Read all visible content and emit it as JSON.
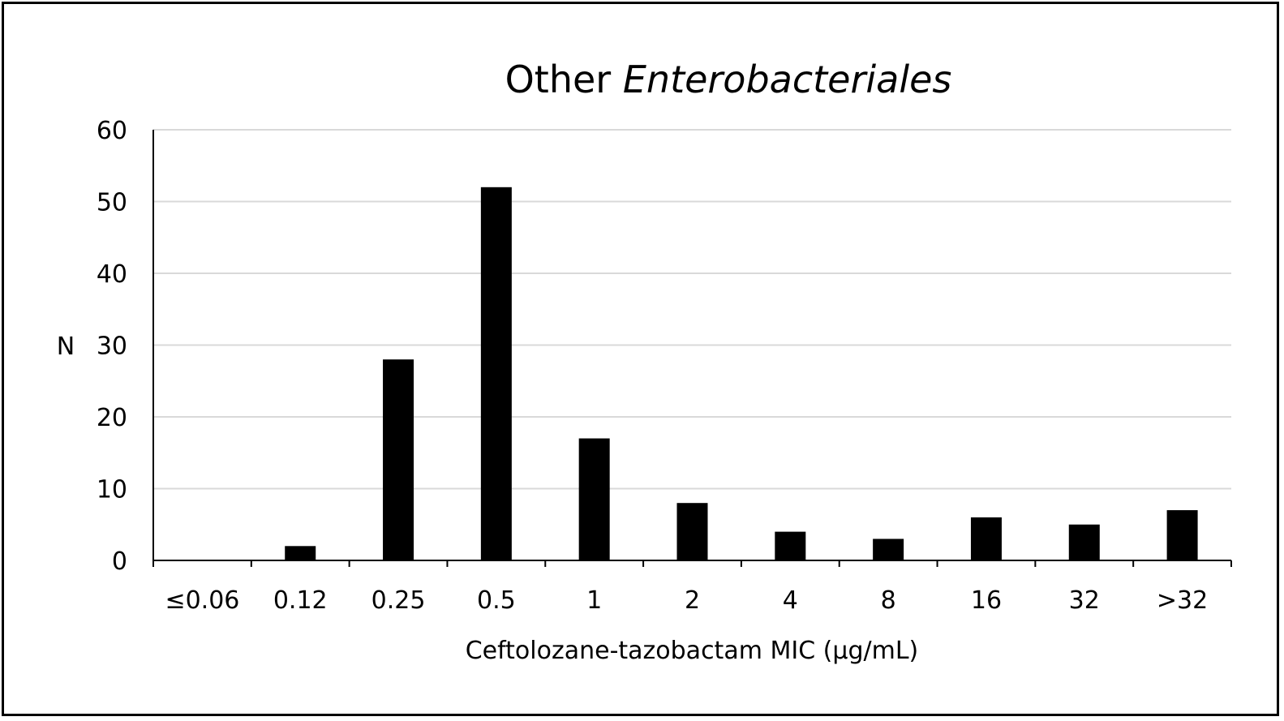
{
  "chart_data": {
    "type": "bar",
    "title": "Other",
    "title_italic": "Enterobacteriales",
    "xlabel": "Ceftolozane-tazobactam MIC (µg/mL)",
    "ylabel": "N",
    "categories": [
      "≤0.06",
      "0.12",
      "0.25",
      "0.5",
      "1",
      "2",
      "4",
      "8",
      "16",
      "32",
      ">32"
    ],
    "values": [
      0,
      2,
      28,
      52,
      17,
      8,
      4,
      3,
      6,
      5,
      7
    ],
    "ylim": [
      0,
      60
    ],
    "yticks": [
      0,
      10,
      20,
      30,
      40,
      50,
      60
    ],
    "grid": true,
    "legend": "none",
    "bar_color": "#000000",
    "grid_color": "#d9d9d9"
  }
}
